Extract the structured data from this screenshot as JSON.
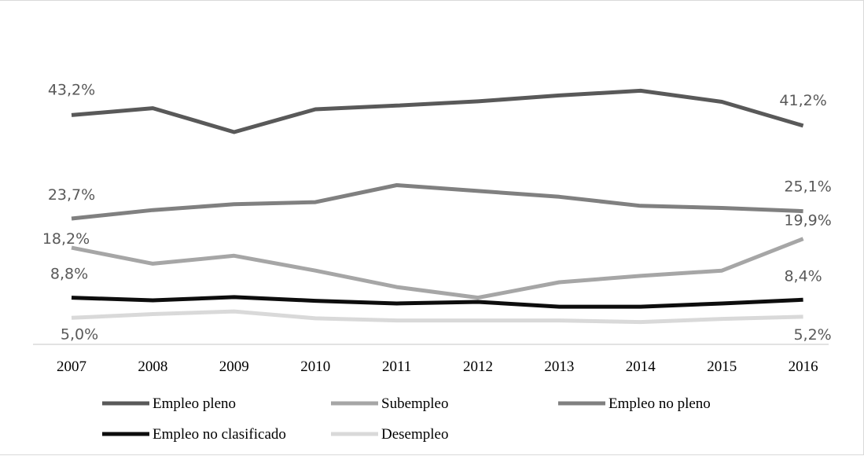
{
  "chart_data": {
    "type": "line",
    "categories": [
      "2007",
      "2008",
      "2009",
      "2010",
      "2011",
      "2012",
      "2013",
      "2014",
      "2015",
      "2016"
    ],
    "ylim": [
      0,
      50
    ],
    "grid": false,
    "legend_position": "bottom",
    "series": [
      {
        "name": "Empleo pleno",
        "color": "#595959",
        "values": [
          43.2,
          44.5,
          40.0,
          44.3,
          45.0,
          45.8,
          46.9,
          47.8,
          45.7,
          41.2
        ],
        "labels": [
          {
            "index": 0,
            "text": "43,2%"
          },
          {
            "index": 9,
            "text": "41,2%"
          }
        ]
      },
      {
        "name": "Subempleo",
        "color": "#a6a6a6",
        "values": [
          18.2,
          15.2,
          16.7,
          13.9,
          10.8,
          8.8,
          11.7,
          12.9,
          13.9,
          19.9
        ],
        "labels": [
          {
            "index": 0,
            "text": "18,2%"
          },
          {
            "index": 9,
            "text": "19,9%"
          }
        ]
      },
      {
        "name": "Empleo no pleno",
        "color": "#808080",
        "values": [
          23.7,
          25.3,
          26.4,
          26.8,
          30.0,
          28.9,
          27.8,
          26.1,
          25.7,
          25.1
        ],
        "labels": [
          {
            "index": 0,
            "text": "23,7%"
          },
          {
            "index": 9,
            "text": "25,1%"
          }
        ]
      },
      {
        "name": "Empleo no clasificado",
        "color": "#0d0d0d",
        "values": [
          8.8,
          8.3,
          8.9,
          8.2,
          7.7,
          8.0,
          7.1,
          7.1,
          7.7,
          8.4
        ],
        "labels": [
          {
            "index": 0,
            "text": "8,8%"
          },
          {
            "index": 9,
            "text": "8,4%"
          }
        ]
      },
      {
        "name": "Desempleo",
        "color": "#d9d9d9",
        "values": [
          5.0,
          5.7,
          6.2,
          4.9,
          4.5,
          4.5,
          4.5,
          4.2,
          4.8,
          5.2
        ],
        "labels": [
          {
            "index": 0,
            "text": "5,0%"
          },
          {
            "index": 9,
            "text": "5,2%"
          }
        ]
      }
    ]
  }
}
